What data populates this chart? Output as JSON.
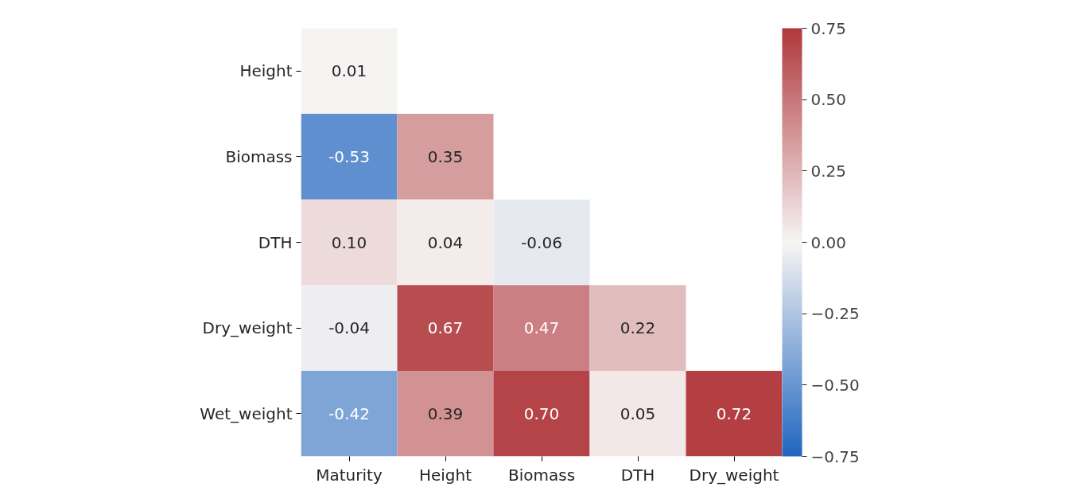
{
  "chart_data": {
    "type": "heatmap",
    "categories": [
      "Maturity",
      "Height",
      "Biomass",
      "DTH",
      "Dry_weight"
    ],
    "y_categories": [
      "Height",
      "Biomass",
      "DTH",
      "Dry_weight",
      "Wet_weight"
    ],
    "cells": [
      [
        0.01,
        null,
        null,
        null,
        null
      ],
      [
        -0.53,
        0.35,
        null,
        null,
        null
      ],
      [
        0.1,
        0.04,
        -0.06,
        null,
        null
      ],
      [
        -0.04,
        0.67,
        0.47,
        0.22,
        null
      ],
      [
        -0.42,
        0.39,
        0.7,
        0.05,
        0.72
      ]
    ],
    "cell_labels": [
      [
        "0.01",
        null,
        null,
        null,
        null
      ],
      [
        "-0.53",
        "0.35",
        null,
        null,
        null
      ],
      [
        "0.10",
        "0.04",
        "-0.06",
        null,
        null
      ],
      [
        "-0.04",
        "0.67",
        "0.47",
        "0.22",
        null
      ],
      [
        "-0.42",
        "0.39",
        "0.70",
        "0.05",
        "0.72"
      ]
    ],
    "clim": [
      -0.75,
      0.75
    ],
    "cticks": [
      {
        "value": -0.75,
        "label": "−0.75"
      },
      {
        "value": -0.5,
        "label": "−0.50"
      },
      {
        "value": -0.25,
        "label": "−0.25"
      },
      {
        "value": 0,
        "label": "0.00"
      },
      {
        "value": 0.25,
        "label": "0.25"
      },
      {
        "value": 0.5,
        "label": "0.50"
      },
      {
        "value": 0.75,
        "label": "0.75"
      }
    ]
  }
}
